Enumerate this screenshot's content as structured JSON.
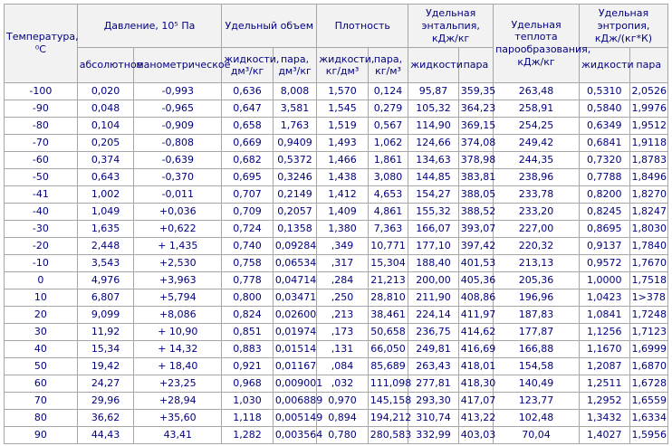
{
  "chart_data": {
    "type": "table",
    "header": {
      "temperature": "Температура, ⁰С",
      "pressure_group": "Давление, 10⁵ Па",
      "pressure_abs": "абсолютное",
      "pressure_gauge": "манометрическое",
      "volume_group": "Удельный объем",
      "volume_liquid": "жидкости, дм³/кг",
      "volume_vapor": "пара, дм³/кг",
      "density_group": "Плотность",
      "density_liquid": "жидкости, кг/дм³",
      "density_vapor": "пара, кг/м³",
      "enthalpy_group": "Удельная энтальпия, кДж/кг",
      "enthalpy_liquid": "жидкости",
      "enthalpy_vapor": "пара",
      "heat_vaporization": "Удельная теплота парообразования, кДж/кг",
      "entropy_group": "Удельная энтропия, кДж/(кг*К)",
      "entropy_liquid": "жидкости",
      "entropy_vapor": "пара"
    },
    "rows": [
      [
        "-100",
        "0,020",
        "-0,993",
        "0,636",
        "8,008",
        "1,570",
        "0,124",
        "95,87",
        "359,35",
        "263,48",
        "0,5310",
        "2,0526"
      ],
      [
        "-90",
        "0,048",
        "-0,965",
        "0,647",
        "3,581",
        "1,545",
        "0,279",
        "105,32",
        "364,23",
        "258,91",
        "0,5840",
        "1,9976"
      ],
      [
        "-80",
        "0,104",
        "-0,909",
        "0,658",
        "1,763",
        "1,519",
        "0,567",
        "114,90",
        "369,15",
        "254,25",
        "0,6349",
        "1,9512"
      ],
      [
        "-70",
        "0,205",
        "-0,808",
        "0,669",
        "0,9409",
        "1,493",
        "1,062",
        "124,66",
        "374,08",
        "249,42",
        "0,6841",
        "1,9118"
      ],
      [
        "-60",
        "0,374",
        "-0,639",
        "0,682",
        "0,5372",
        "1,466",
        "1,861",
        "134,63",
        "378,98",
        "244,35",
        "0,7320",
        "1,8783"
      ],
      [
        "-50",
        "0,643",
        "-0,370",
        "0,695",
        "0,3246",
        "1,438",
        "3,080",
        "144,85",
        "383,81",
        "238,96",
        "0,7788",
        "1,8496"
      ],
      [
        "-41",
        "1,002",
        "-0,011",
        "0,707",
        "0,2149",
        "1,412",
        "4,653",
        "154,27",
        "388,05",
        "233,78",
        "0,8200",
        "1,8270"
      ],
      [
        "-40",
        "1,049",
        "+0,036",
        "0,709",
        "0,2057",
        "1,409",
        "4,861",
        "155,32",
        "388,52",
        "233,20",
        "0,8245",
        "1,8247"
      ],
      [
        "-30",
        "1,635",
        "+0,622",
        "0,724",
        "0,1358",
        "1,380",
        "7,363",
        "166,07",
        "393,07",
        "227,00",
        "0,8695",
        "1,8030"
      ],
      [
        "-20",
        "2,448",
        "+ 1,435",
        "0,740",
        "0,09284",
        ",349",
        "10,771",
        "177,10",
        "397,42",
        "220,32",
        "0,9137",
        "1,7840"
      ],
      [
        "-10",
        "3,543",
        "+2,530",
        "0,758",
        "0,06534",
        ",317",
        "15,304",
        "188,40",
        "401,53",
        "213,13",
        "0,9572",
        "1,7670"
      ],
      [
        "0",
        "4,976",
        "+3,963",
        "0,778",
        "0,04714",
        ",284",
        "21,213",
        "200,00",
        "405,36",
        "205,36",
        "1,0000",
        "1,7518"
      ],
      [
        "10",
        "6,807",
        "+5,794",
        "0,800",
        "0,03471",
        ",250",
        "28,810",
        "211,90",
        "408,86",
        "196,96",
        "1,0423",
        "1>378"
      ],
      [
        "20",
        "9,099",
        "+8,086",
        "0,824",
        "0,02600",
        ",213",
        "38,461",
        "224,14",
        "411,97",
        "187,83",
        "1,0841",
        "1,7248"
      ],
      [
        "30",
        "11,92",
        "+ 10,90",
        "0,851",
        "0,01974",
        ",173",
        "50,658",
        "236,75",
        "414,62",
        "177,87",
        "1,1256",
        "1,7123"
      ],
      [
        "40",
        "15,34",
        "+ 14,32",
        "0,883",
        "0,01514",
        ",131",
        "66,050",
        "249,81",
        "416,69",
        "166,88",
        "1,1670",
        "1,6999"
      ],
      [
        "50",
        "19,42",
        "+ 18,40",
        "0,921",
        "0,01167",
        ",084",
        "85,689",
        "263,43",
        "418,01",
        "154,58",
        "1,2087",
        "1,6870"
      ],
      [
        "60",
        "24,27",
        "+23,25",
        "0,968",
        "0,009001",
        ",032",
        "111,098",
        "277,81",
        "418,30",
        "140,49",
        "1,2511",
        "1,6728"
      ],
      [
        "70",
        "29,96",
        "+28,94",
        "1,030",
        "0,006889",
        "0,970",
        "145,158",
        "293,30",
        "417,07",
        "123,77",
        "1,2952",
        "1,6559"
      ],
      [
        "80",
        "36,62",
        "+35,60",
        "1,118",
        "0,005149",
        "0,894",
        "194,212",
        "310,74",
        "413,22",
        "102,48",
        "1,3432",
        "1,6334"
      ],
      [
        "90",
        "44,43",
        "43,41",
        "1,282",
        "0,003564",
        "0,780",
        "280,583",
        "332,99",
        "403,03",
        "70,04",
        "1,4027",
        "1,5956"
      ]
    ],
    "colors": {
      "text": "#000080",
      "border": "#a6a6a6",
      "header_background": "#f2f2f2",
      "cell_background": "#ffffff"
    }
  }
}
